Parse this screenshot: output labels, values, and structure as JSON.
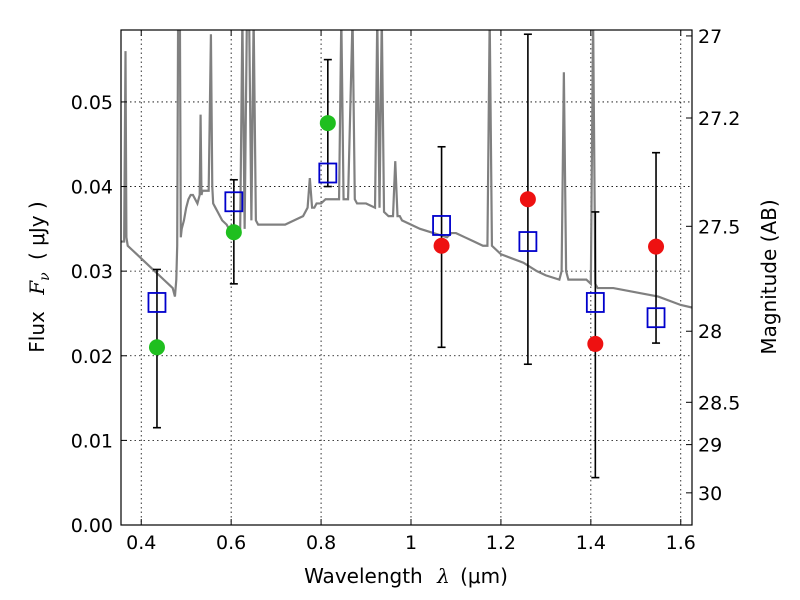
{
  "chart_data": {
    "type": "scatter",
    "title": "",
    "xlabel_text": "Wavelength",
    "xlabel_symbol": "λ",
    "xlabel_unit": "(μm)",
    "ylabel_text": "Flux",
    "ylabel_symbol": "F",
    "ylabel_subscript": "ν",
    "ylabel_unit": "( μJy )",
    "y2label": "Magnitude (AB)",
    "xlim": [
      0.355,
      1.625
    ],
    "ylim": [
      0.0,
      0.0585
    ],
    "x_ticks": [
      0.4,
      0.6,
      0.8,
      1.0,
      1.2,
      1.4,
      1.6
    ],
    "x_tick_labels": [
      "0.4",
      "0.6",
      "0.8",
      "1",
      "1.2",
      "1.4",
      "1.6"
    ],
    "y_ticks": [
      0.0,
      0.01,
      0.02,
      0.03,
      0.04,
      0.05
    ],
    "y_tick_labels": [
      "0.00",
      "0.01",
      "0.02",
      "0.03",
      "0.04",
      "0.05"
    ],
    "y2_ticks": [
      {
        "label": "27",
        "flux": 0.0578
      },
      {
        "label": "27.2",
        "flux": 0.0481
      },
      {
        "label": "27.5",
        "flux": 0.0353
      },
      {
        "label": "28",
        "flux": 0.0229
      },
      {
        "label": "28.5",
        "flux": 0.0145
      },
      {
        "label": "29",
        "flux": 0.0095
      },
      {
        "label": "30",
        "flux": 0.0038
      }
    ],
    "grid": true,
    "spectrum": {
      "color": "#808080",
      "x": [
        0.355,
        0.362,
        0.365,
        0.367,
        0.37,
        0.38,
        0.39,
        0.4,
        0.41,
        0.42,
        0.43,
        0.44,
        0.45,
        0.46,
        0.47,
        0.475,
        0.478,
        0.48,
        0.482,
        0.484,
        0.486,
        0.488,
        0.49,
        0.495,
        0.5,
        0.505,
        0.51,
        0.515,
        0.52,
        0.525,
        0.53,
        0.532,
        0.534,
        0.536,
        0.54,
        0.55,
        0.555,
        0.558,
        0.56,
        0.565,
        0.57,
        0.58,
        0.59,
        0.6,
        0.61,
        0.62,
        0.625,
        0.63,
        0.635,
        0.64,
        0.645,
        0.65,
        0.655,
        0.66,
        0.665,
        0.67,
        0.68,
        0.7,
        0.72,
        0.74,
        0.76,
        0.77,
        0.775,
        0.78,
        0.785,
        0.79,
        0.8,
        0.81,
        0.82,
        0.83,
        0.84,
        0.845,
        0.85,
        0.86,
        0.87,
        0.875,
        0.88,
        0.89,
        0.9,
        0.92,
        0.925,
        0.93,
        0.935,
        0.94,
        0.95,
        0.96,
        0.965,
        0.97,
        0.975,
        0.98,
        1.0,
        1.02,
        1.05,
        1.08,
        1.09,
        1.1,
        1.12,
        1.14,
        1.16,
        1.17,
        1.175,
        1.18,
        1.19,
        1.2,
        1.25,
        1.28,
        1.3,
        1.33,
        1.335,
        1.34,
        1.345,
        1.35,
        1.37,
        1.39,
        1.4,
        1.405,
        1.41,
        1.415,
        1.42,
        1.45,
        1.5,
        1.55,
        1.6,
        1.625
      ],
      "y": [
        0.0335,
        0.0335,
        0.056,
        0.034,
        0.033,
        0.0325,
        0.032,
        0.0315,
        0.031,
        0.0305,
        0.03,
        0.0295,
        0.029,
        0.0285,
        0.028,
        0.027,
        0.029,
        0.033,
        0.06,
        0.06,
        0.06,
        0.034,
        0.035,
        0.036,
        0.0375,
        0.0385,
        0.039,
        0.039,
        0.0385,
        0.038,
        0.039,
        0.0485,
        0.039,
        0.0395,
        0.0395,
        0.0395,
        0.058,
        0.04,
        0.038,
        0.0375,
        0.037,
        0.036,
        0.0355,
        0.0345,
        0.034,
        0.0345,
        0.06,
        0.035,
        0.06,
        0.06,
        0.036,
        0.06,
        0.036,
        0.0355,
        0.0355,
        0.0355,
        0.0355,
        0.0355,
        0.0355,
        0.036,
        0.0365,
        0.0375,
        0.041,
        0.0375,
        0.0375,
        0.038,
        0.038,
        0.0385,
        0.0385,
        0.0385,
        0.0385,
        0.06,
        0.0385,
        0.0385,
        0.06,
        0.0385,
        0.038,
        0.038,
        0.038,
        0.0375,
        0.06,
        0.0375,
        0.06,
        0.037,
        0.0365,
        0.0365,
        0.043,
        0.0365,
        0.0365,
        0.036,
        0.0355,
        0.035,
        0.0345,
        0.034,
        0.0345,
        0.0345,
        0.034,
        0.0335,
        0.033,
        0.033,
        0.06,
        0.033,
        0.0325,
        0.032,
        0.031,
        0.03,
        0.0295,
        0.029,
        0.03,
        0.0535,
        0.03,
        0.029,
        0.029,
        0.029,
        0.0285,
        0.06,
        0.0285,
        0.028,
        0.028,
        0.028,
        0.0275,
        0.027,
        0.026,
        0.0257
      ]
    },
    "model_points": {
      "marker": "square",
      "color": "#0000cc",
      "x": [
        0.435,
        0.606,
        0.815,
        1.068,
        1.26,
        1.41,
        1.545
      ],
      "y": [
        0.0263,
        0.0382,
        0.0416,
        0.0354,
        0.0335,
        0.0263,
        0.0245
      ]
    },
    "green_points": {
      "marker": "circle",
      "color": "#1fbf1f",
      "x": [
        0.435,
        0.606,
        0.815
      ],
      "y": [
        0.021,
        0.0346,
        0.0475
      ]
    },
    "red_points": {
      "marker": "circle",
      "color": "#ee1111",
      "x": [
        1.068,
        1.26,
        1.41,
        1.545
      ],
      "y": [
        0.033,
        0.0385,
        0.0214,
        0.0329
      ]
    },
    "error_bars": [
      {
        "x": 0.435,
        "low": 0.0115,
        "high": 0.0302
      },
      {
        "x": 0.606,
        "low": 0.0285,
        "high": 0.0408
      },
      {
        "x": 0.815,
        "low": 0.04,
        "high": 0.055
      },
      {
        "x": 1.068,
        "low": 0.021,
        "high": 0.0447
      },
      {
        "x": 1.26,
        "low": 0.019,
        "high": 0.058
      },
      {
        "x": 1.41,
        "low": 0.0056,
        "high": 0.037
      },
      {
        "x": 1.545,
        "low": 0.0215,
        "high": 0.044
      }
    ]
  }
}
